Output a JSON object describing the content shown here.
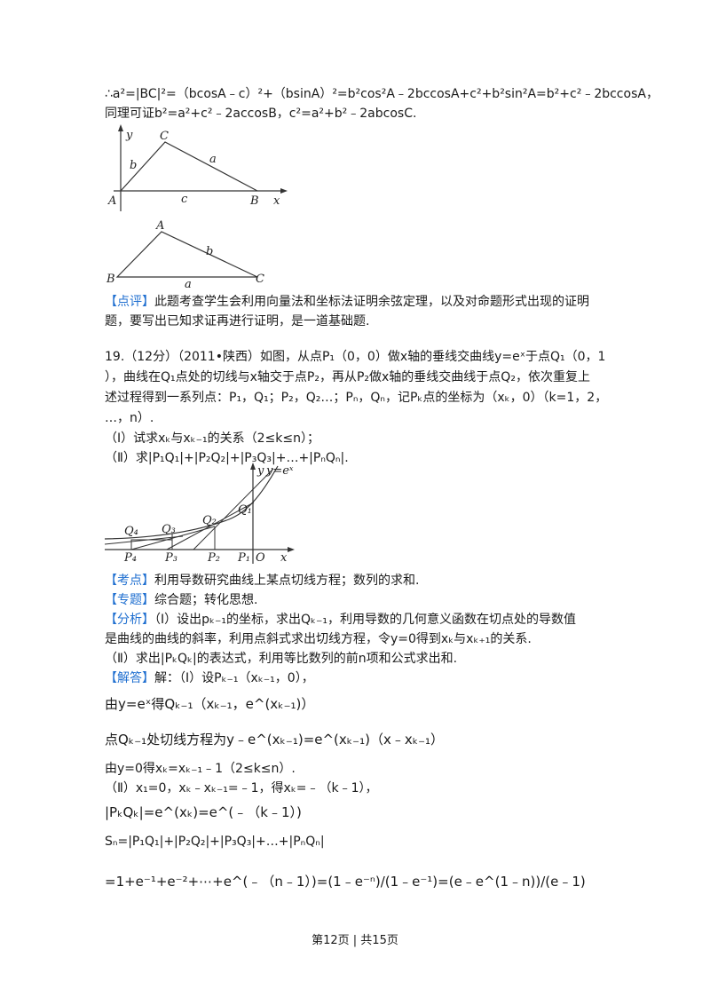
{
  "proof": {
    "line1": "∴a²=|BC|²=（bcosA﹣c）²+（bsinA）²=b²cos²A﹣2bccosA+c²+b²sin²A=b²+c²﹣2bccosA，",
    "line2": "同理可证b²=a²+c²﹣2accosB，c²=a²+b²﹣2abcosC."
  },
  "fig1": {
    "y": "y",
    "x": "x",
    "A": "A",
    "B": "B",
    "C": "C",
    "a": "a",
    "b": "b",
    "c": "c"
  },
  "fig2": {
    "A": "A",
    "B": "B",
    "C": "C",
    "a": "a",
    "b": "b"
  },
  "review": {
    "tag": "【点评】",
    "line1": "此题考查学生会利用向量法和坐标法证明余弦定理，以及对命题形式出现的证明",
    "line2": "题，要写出已知求证再进行证明，是一道基础题."
  },
  "problem": {
    "line1": "19.（12分）（2011•陕西）如图，从点P₁（0，0）做x轴的垂线交曲线y=eˣ于点Q₁（0，1",
    "line2": "），曲线在Q₁点处的切线与x轴交于点P₂，再从P₂做x轴的垂线交曲线于点Q₂，依次重复上",
    "line3": "述过程得到一系列点：P₁，Q₁；P₂，Q₂…；Pₙ，Qₙ，记Pₖ点的坐标为（xₖ，0）（k=1，2，",
    "line4": "…，n）.",
    "part1": "（Ⅰ）试求xₖ与xₖ₋₁的关系（2≤k≤n）；",
    "part2": "（Ⅱ）求|P₁Q₁|+|P₂Q₂|+|P₃Q₃|+…+|PₙQₙ|."
  },
  "fig3": {
    "y": "y",
    "curve": "y=eˣ",
    "x": "x",
    "O": "O",
    "Q1": "Q₁",
    "Q2": "Q₂",
    "Q3": "Q₃",
    "Q4": "Q₄",
    "P1": "P₁",
    "P2": "P₂",
    "P3": "P₃",
    "P4": "P₄"
  },
  "kaodian": {
    "tag": "【考点】",
    "text": "利用导数研究曲线上某点切线方程；数列的求和."
  },
  "zhuanti": {
    "tag": "【专题】",
    "text": "综合题；转化思想."
  },
  "fenxi": {
    "tag": "【分析】",
    "line1": "（Ⅰ）设出pₖ₋₁的坐标，求出Qₖ₋₁，利用导数的几何意义函数在切点处的导数值",
    "line2": "是曲线的曲线的斜率，利用点斜式求出切线方程，令y=0得到xₖ与xₖ₊₁的关系.",
    "line3": "（Ⅱ）求出|PₖQₖ|的表达式，利用等比数列的前n项和公式求出和."
  },
  "jieda": {
    "tag": "【解答】",
    "line1": "解：（Ⅰ）设Pₖ₋₁（xₖ₋₁，0），",
    "line2": "由y=eˣ得Qₖ₋₁（xₖ₋₁，e^(xₖ₋₁)）",
    "line3": "点Qₖ₋₁处切线方程为y﹣e^(xₖ₋₁)=e^(xₖ₋₁)（x﹣xₖ₋₁）",
    "line4": "由y=0得xₖ=xₖ₋₁﹣1（2≤k≤n）.",
    "line5": "（Ⅱ）x₁=0，xₖ﹣xₖ₋₁=﹣1，得xₖ=﹣（k﹣1），",
    "line6": "|PₖQₖ|=e^(xₖ)=e^(﹣（k﹣1）)",
    "line7": "Sₙ=|P₁Q₁|+|P₂Q₂|+|P₃Q₃|+…+|PₙQₙ|",
    "line8": "=1+e⁻¹+e⁻²+⋯+e^(﹣（n﹣1）)=(1﹣e⁻ⁿ)/(1﹣e⁻¹)=(e﹣e^(1﹣n))/(e﹣1)"
  },
  "footer": "第12页 | 共15页"
}
